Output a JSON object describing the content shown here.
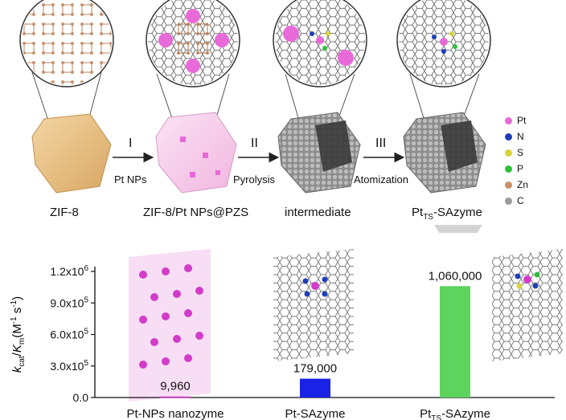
{
  "top": {
    "stages": [
      {
        "label": "ZIF-8"
      },
      {
        "label": "ZIF-8/Pt NPs@PZS"
      },
      {
        "label": "intermediate"
      },
      {
        "label": "Pt",
        "sub": "TS",
        "suffix": "-SAzyme"
      }
    ],
    "steps": [
      {
        "roman": "I",
        "caption": "Pt NPs"
      },
      {
        "roman": "II",
        "caption": "Pyrolysis"
      },
      {
        "roman": "III",
        "caption": "Atomization"
      }
    ],
    "legend": [
      {
        "label": "Pt",
        "color": "#e86ad8"
      },
      {
        "label": "N",
        "color": "#1f3fb8"
      },
      {
        "label": "S",
        "color": "#d6d23a"
      },
      {
        "label": "P",
        "color": "#2fbf3a"
      },
      {
        "label": "Zn",
        "color": "#c8906a"
      },
      {
        "label": "C",
        "color": "#9a9a9a"
      }
    ]
  },
  "chart_data": {
    "type": "bar",
    "categories": [
      "Pt-NPs nanozyme",
      "Pt-SAzyme",
      "Pt_TS-SAzyme"
    ],
    "values": [
      9960,
      179000,
      1060000
    ],
    "value_labels": [
      "9,960",
      "179,000",
      "1,060,000"
    ],
    "colors": [
      "#c040c0",
      "#1a22e6",
      "#5ed35e"
    ],
    "ylim": [
      0,
      1200000
    ],
    "yticks": [
      "0.0",
      "3.0x10",
      "6.0x10",
      "9.0x10",
      "1.2x10"
    ],
    "ytick_exp": "5",
    "ytick_top_exp": "6",
    "ylabel": {
      "k": "k",
      "cat": "cat",
      "slash": "/",
      "K": "K",
      "m": "m",
      "units": "(M",
      "u1": "-1",
      "s": " s",
      "u2": "-1",
      "close": ")"
    },
    "x_sub": "TS"
  }
}
